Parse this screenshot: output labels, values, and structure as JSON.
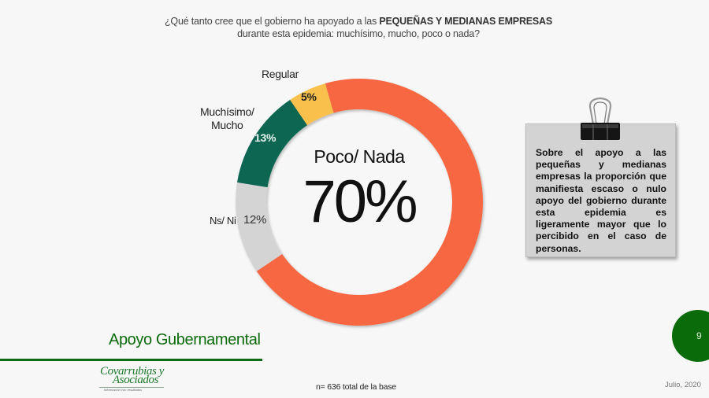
{
  "question": {
    "prefix": "¿Qué tanto cree que el gobierno ha apoyado a las ",
    "emphasis": "PEQUEÑAS Y MEDIANAS EMPRESAS",
    "line2": "durante esta epidemia: muchísimo, mucho, poco o nada?"
  },
  "chart_data": {
    "type": "pie",
    "variant": "donut",
    "title": "¿Qué tanto cree que el gobierno ha apoyado a las PEQUEÑAS Y MEDIANAS EMPRESAS durante esta epidemia: muchísimo, mucho, poco o nada?",
    "categories": [
      "Poco/ Nada",
      "Ns/ Ni",
      "Muchísimo/ Mucho",
      "Regular"
    ],
    "values": [
      70,
      12,
      13,
      5
    ],
    "unit": "%",
    "colors": [
      "#f76843",
      "#d4d4d4",
      "#0d6651",
      "#f9c14c"
    ],
    "center_label": "Poco/ Nada",
    "center_value": "70%"
  },
  "labels": {
    "regular": "Regular",
    "regular_pct": "5%",
    "mucho_line1": "Muchísimo/",
    "mucho_line2": "Mucho",
    "mucho_pct": "13%",
    "nsni": "Ns/ Ni",
    "nsni_pct": "12%",
    "center_label": "Poco/ Nada",
    "center_value": "70%"
  },
  "note": {
    "text": "Sobre el apoyo a las pequeñas y medianas empresas la proporción que manifiesta escaso o nulo apoyo del gobierno durante esta epidemia es ligeramente mayor que lo percibido en el caso de personas."
  },
  "footer": {
    "section_title": "Apoyo Gubernamental",
    "logo_line1": "Covarrubias y",
    "logo_line2": "Asociados",
    "logo_tagline": "Información con resultados",
    "base": "n= 636 total de la base",
    "date": "Julio, 2020",
    "page": "9"
  },
  "colors": {
    "accent_green": "#0a6b0a",
    "orange": "#f76843",
    "yellow": "#f9c14c",
    "teal": "#0d6651",
    "gray": "#d4d4d4"
  }
}
